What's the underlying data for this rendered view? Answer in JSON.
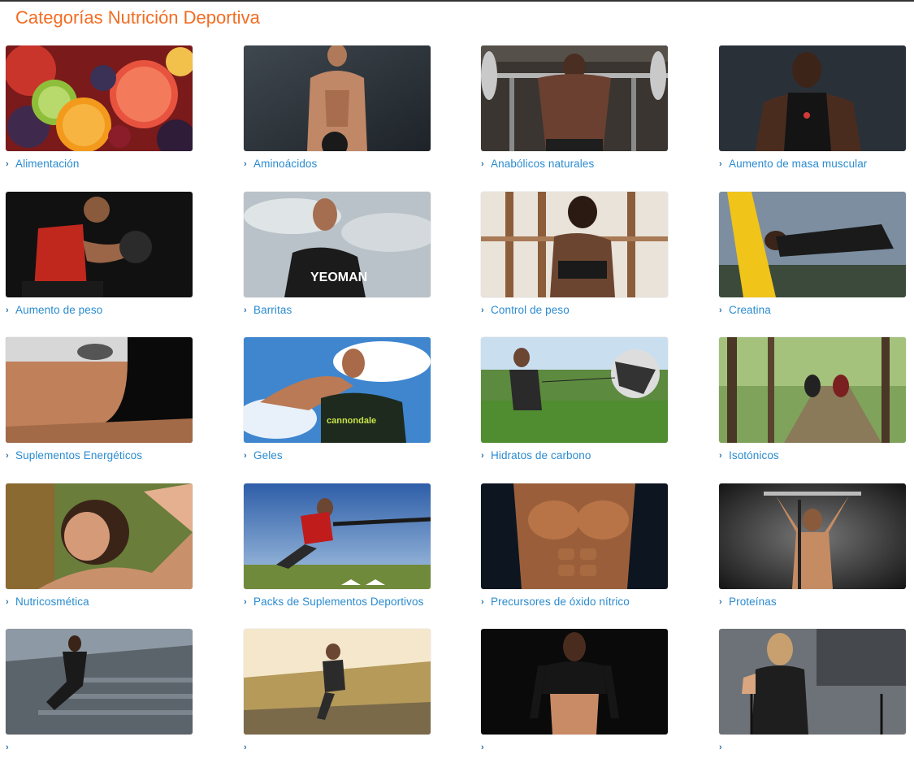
{
  "page": {
    "title": "Categorías Nutrición Deportiva"
  },
  "colors": {
    "title": "#f26c21",
    "link": "#2a8bd0"
  },
  "chevron_icon": "chevron-right-icon",
  "categories": [
    {
      "label": "Alimentación",
      "image": "fruit-image"
    },
    {
      "label": "Aminoácidos",
      "image": "shirtless-athlete-image"
    },
    {
      "label": "Anabólicos naturales",
      "image": "barbell-squat-image"
    },
    {
      "label": "Aumento de masa muscular",
      "image": "muscular-man-tank-top-image"
    },
    {
      "label": "Aumento de peso",
      "image": "dumbbell-curl-image"
    },
    {
      "label": "Barritas",
      "image": "triathlete-image"
    },
    {
      "label": "Control de peso",
      "image": "woman-boxing-image"
    },
    {
      "label": "Creatina",
      "image": "tackling-bag-image"
    },
    {
      "label": "Suplementos Energéticos",
      "image": "swimmer-image"
    },
    {
      "label": "Geles",
      "image": "cyclist-drinking-image"
    },
    {
      "label": "Hidratos de carbono",
      "image": "parachute-sprint-image"
    },
    {
      "label": "Isotónicos",
      "image": "mountain-bikers-image"
    },
    {
      "label": "Nutricosmética",
      "image": "smiling-woman-image"
    },
    {
      "label": "Packs de Suplementos Deportivos",
      "image": "resistance-band-sprint-image"
    },
    {
      "label": "Precursores de óxido nítrico",
      "image": "torso-closeup-image"
    },
    {
      "label": "Proteínas",
      "image": "pullup-bar-image"
    },
    {
      "label": "",
      "image": "stairs-runner-image"
    },
    {
      "label": "",
      "image": "trail-runner-image"
    },
    {
      "label": "",
      "image": "fitness-woman-image"
    },
    {
      "label": "",
      "image": "band-training-woman-image"
    }
  ]
}
